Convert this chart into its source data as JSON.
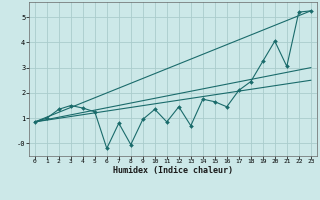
{
  "xlabel": "Humidex (Indice chaleur)",
  "bg_color": "#cce8e8",
  "grid_color": "#aacccc",
  "line_color": "#1a6b6b",
  "xlim": [
    -0.5,
    23.5
  ],
  "ylim": [
    -0.5,
    5.6
  ],
  "xticks": [
    0,
    1,
    2,
    3,
    4,
    5,
    6,
    7,
    8,
    9,
    10,
    11,
    12,
    13,
    14,
    15,
    16,
    17,
    18,
    19,
    20,
    21,
    22,
    23
  ],
  "yticks": [
    0,
    1,
    2,
    3,
    4,
    5
  ],
  "ytick_labels": [
    "-0",
    "1",
    "2",
    "3",
    "4",
    "5"
  ],
  "data_x": [
    0,
    1,
    2,
    3,
    4,
    5,
    6,
    7,
    8,
    9,
    10,
    11,
    12,
    13,
    14,
    15,
    16,
    17,
    18,
    19,
    20,
    21,
    22,
    23
  ],
  "data_y": [
    0.85,
    1.0,
    1.35,
    1.5,
    1.4,
    1.25,
    -0.2,
    0.8,
    -0.05,
    0.95,
    1.35,
    0.85,
    1.45,
    0.7,
    1.75,
    1.65,
    1.45,
    2.1,
    2.45,
    3.25,
    4.05,
    3.05,
    5.2,
    5.25
  ],
  "line1_x": [
    0,
    23
  ],
  "line1_y": [
    0.85,
    5.25
  ],
  "line2_x": [
    0,
    23
  ],
  "line2_y": [
    0.85,
    3.0
  ],
  "line3_x": [
    0,
    23
  ],
  "line3_y": [
    0.85,
    2.5
  ]
}
